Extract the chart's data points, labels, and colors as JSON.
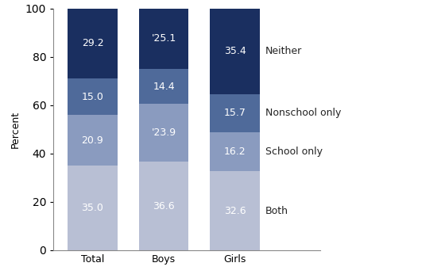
{
  "categories": [
    "Total",
    "Boys",
    "Girls"
  ],
  "segments": {
    "Both": [
      35.0,
      36.6,
      32.6
    ],
    "School only": [
      20.9,
      23.9,
      16.2
    ],
    "Nonschool only": [
      15.0,
      14.4,
      15.7
    ],
    "Neither": [
      29.2,
      25.1,
      35.4
    ]
  },
  "colors": {
    "Both": "#b8bfd4",
    "School only": "#8a9bbf",
    "Nonschool only": "#4f6a9a",
    "Neither": "#1a2f60"
  },
  "special_labels": {
    "Boys_School only": "'23.9",
    "Boys_Neither": "'25.1"
  },
  "ylabel": "Percent",
  "ylim": [
    0,
    100
  ],
  "yticks": [
    0,
    20,
    40,
    60,
    80,
    100
  ],
  "bar_width": 0.7,
  "bar_positions": [
    0,
    1,
    2
  ],
  "text_color_white": "#ffffff",
  "font_size_labels": 9,
  "font_size_axis": 9,
  "font_size_legend": 9,
  "figure_bg": "#ffffff",
  "axes_bg": "#ffffff",
  "legend_entries": [
    {
      "label": "Neither",
      "color": "#1a2f60"
    },
    {
      "label": "Nonschool only",
      "color": "#4f6a9a"
    },
    {
      "label": "School only",
      "color": "#8a9bbf"
    },
    {
      "label": "Both",
      "color": "#b8bfd4"
    }
  ],
  "xlim": [
    -0.55,
    3.2
  ]
}
